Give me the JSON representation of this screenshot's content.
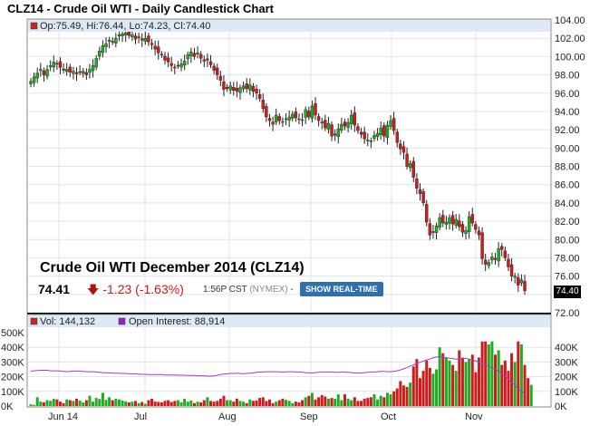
{
  "chart_data": [
    {
      "type": "candlestick",
      "title": "CLZ14 - Crude Oil WTI - Daily Candlestick Chart",
      "legend": {
        "label": "Op:75.49, Hi:76.44, Lo:74.23, Cl:74.40",
        "color": "#cc2222",
        "placement": "top-left"
      },
      "y_ticks": [
        "104.00",
        "102.00",
        "100.00",
        "98.00",
        "96.00",
        "94.00",
        "92.00",
        "90.00",
        "88.00",
        "86.00",
        "84.00",
        "82.00",
        "80.00",
        "78.00",
        "76.00",
        "74.00",
        "72.00"
      ],
      "ylim": [
        72,
        104
      ],
      "last_value_label": "74.40",
      "x_ticks": [
        "Jun 14",
        "Jul",
        "Aug",
        "Sep",
        "Oct",
        "Nov"
      ],
      "grid": true,
      "closes": [
        97.3,
        97.8,
        98.2,
        98.6,
        98.0,
        98.6,
        99.0,
        99.4,
        99.2,
        98.8,
        98.5,
        98.6,
        98.3,
        98.4,
        98.1,
        98.3,
        98.4,
        98.0,
        98.6,
        99.0,
        99.8,
        100.6,
        101.2,
        101.4,
        101.8,
        101.6,
        102.0,
        102.4,
        102.5,
        102.6,
        102.3,
        102.4,
        101.9,
        102.1,
        101.8,
        102.0,
        101.6,
        101.3,
        100.8,
        100.4,
        100.2,
        99.6,
        99.4,
        99.0,
        98.8,
        99.0,
        99.2,
        99.5,
        100.2,
        100.5,
        100.0,
        100.4,
        99.8,
        99.5,
        99.6,
        99.1,
        98.5,
        98.0,
        97.4,
        96.4,
        96.5,
        96.8,
        96.3,
        96.2,
        96.6,
        96.8,
        96.5,
        96.9,
        96.2,
        96.0,
        95.4,
        94.3,
        93.4,
        93.0,
        92.6,
        93.6,
        93.0,
        92.9,
        93.2,
        93.4,
        93.7,
        93.3,
        93.2,
        93.1,
        94.2,
        93.4,
        94.6,
        93.6,
        93.0,
        92.8,
        92.2,
        92.7,
        91.3,
        91.4,
        92.1,
        92.6,
        92.4,
        92.8,
        93.6,
        92.5,
        91.9,
        91.5,
        91.0,
        90.9,
        90.8,
        91.4,
        91.6,
        92.2,
        91.3,
        92.5,
        93.0,
        91.9,
        90.6,
        89.9,
        89.5,
        88.0,
        88.3,
        86.8,
        85.6,
        85.0,
        84.0,
        81.9,
        80.5,
        80.9,
        81.5,
        82.4,
        81.8,
        81.9,
        82.4,
        81.7,
        82.2,
        81.4,
        80.8,
        81.0,
        82.5,
        81.8,
        81.1,
        80.5,
        77.9,
        77.3,
        77.5,
        78.1,
        77.8,
        79.0,
        78.9,
        78.0,
        77.0,
        76.0,
        76.0,
        75.0,
        75.6,
        74.4
      ],
      "colors": {
        "up": "#22aa22",
        "down": "#cc1c1c"
      }
    },
    {
      "type": "bar",
      "series": [
        {
          "name": "Vol",
          "legend_label": "Vol: 144,132",
          "color": "#cc2222"
        },
        {
          "name": "Open Interest",
          "legend_label": "Open Interest: 88,914",
          "color": "#9b20c8"
        }
      ],
      "y_ticks_left": [
        "500K",
        "400K",
        "300K",
        "200K",
        "100K",
        "0K"
      ],
      "y_ticks_right": [
        "400K",
        "300K",
        "200K",
        "100K",
        "0K"
      ],
      "ylim": [
        0,
        500000
      ],
      "x_ticks": [
        "Jun 14",
        "Jul",
        "Aug",
        "Sep",
        "Oct",
        "Nov"
      ],
      "volume": [
        12000,
        8000,
        60000,
        30000,
        25000,
        40000,
        35000,
        50000,
        45000,
        30000,
        20000,
        45000,
        40000,
        35000,
        50000,
        38000,
        25000,
        40000,
        70000,
        30000,
        55000,
        48000,
        90000,
        42000,
        60000,
        40000,
        50000,
        45000,
        38000,
        32000,
        25000,
        30000,
        35000,
        20000,
        28000,
        15000,
        40000,
        50000,
        30000,
        28000,
        25000,
        35000,
        40000,
        28000,
        35000,
        40000,
        25000,
        50000,
        30000,
        38000,
        20000,
        30000,
        25000,
        40000,
        60000,
        35000,
        30000,
        35000,
        50000,
        70000,
        40000,
        40000,
        30000,
        50000,
        35000,
        30000,
        20000,
        45000,
        35000,
        38000,
        55000,
        60000,
        35000,
        45000,
        20000,
        30000,
        40000,
        50000,
        42000,
        35000,
        20000,
        30000,
        25000,
        40000,
        60000,
        70000,
        90000,
        45000,
        60000,
        75000,
        65000,
        50000,
        55000,
        50000,
        80000,
        40000,
        80000,
        50000,
        40000,
        60000,
        35000,
        35000,
        50000,
        55000,
        60000,
        80000,
        45000,
        70000,
        60000,
        90000,
        80000,
        100000,
        120000,
        170000,
        140000,
        130000,
        160000,
        270000,
        320000,
        190000,
        240000,
        310000,
        260000,
        220000,
        250000,
        400000,
        360000,
        330000,
        310000,
        280000,
        240000,
        380000,
        330000,
        300000,
        320000,
        350000,
        230000,
        330000,
        440000,
        440000,
        420000,
        440000,
        350000,
        380000,
        280000,
        310000,
        240000,
        360000,
        300000,
        440000,
        420000,
        280000,
        190000,
        144000
      ],
      "open_interest": [
        238000,
        240000,
        242000,
        244000,
        244000,
        244000,
        240000,
        240000,
        240000,
        238000,
        236000,
        234000,
        236000,
        238000,
        238000,
        238000,
        236000,
        234000,
        234000,
        234000,
        232000,
        230000,
        228000,
        226000,
        226000,
        224000,
        224000,
        224000,
        222000,
        222000,
        220000,
        220000,
        220000,
        218000,
        216000,
        216000,
        214000,
        214000,
        214000,
        214000,
        214000,
        212000,
        212000,
        212000,
        212000,
        210000,
        210000,
        210000,
        208000,
        208000,
        208000,
        206000,
        206000,
        206000,
        204000,
        204000,
        206000,
        210000,
        214000,
        218000,
        220000,
        222000,
        222000,
        224000,
        222000,
        220000,
        222000,
        224000,
        226000,
        230000,
        232000,
        232000,
        234000,
        234000,
        234000,
        234000,
        232000,
        232000,
        232000,
        234000,
        234000,
        232000,
        232000,
        230000,
        228000,
        226000,
        226000,
        228000,
        230000,
        232000,
        232000,
        232000,
        232000,
        230000,
        230000,
        232000,
        232000,
        230000,
        228000,
        226000,
        224000,
        226000,
        228000,
        230000,
        232000,
        232000,
        234000,
        236000,
        236000,
        234000,
        234000,
        236000,
        240000,
        246000,
        254000,
        262000,
        272000,
        280000,
        290000,
        298000,
        306000,
        314000,
        320000,
        328000,
        334000,
        336000,
        334000,
        330000,
        326000,
        322000,
        320000,
        320000,
        324000,
        324000,
        320000,
        314000,
        306000,
        300000,
        290000,
        280000,
        270000,
        260000,
        250000,
        236000,
        220000,
        200000,
        180000,
        160000,
        140000,
        118000,
        100000,
        89000
      ]
    }
  ],
  "overlay": {
    "title": "Crude Oil WTI December 2014 (CLZ14)",
    "price": "74.41",
    "change": "-1.23 (-1.63%)",
    "time": "1:56P CST",
    "exchange": "(NYMEX)",
    "separator": "-",
    "button_label": "SHOW REAL-TIME"
  }
}
